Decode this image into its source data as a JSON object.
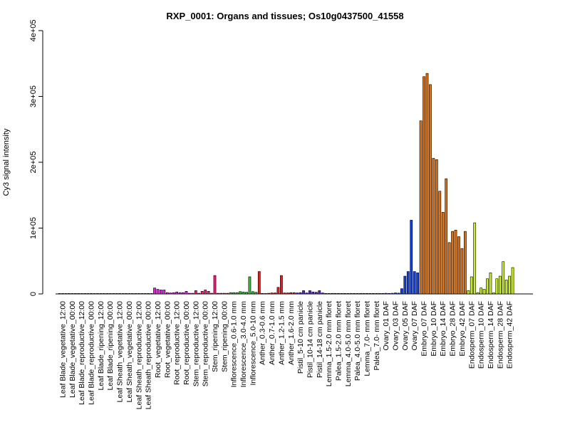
{
  "chart_data": {
    "type": "bar",
    "title": "RXP_0001: Organs and tissues; Os10g0437500_41558",
    "ylabel": "Cy3 signal intensity",
    "xlabel": "",
    "ylim": [
      0,
      400000
    ],
    "yticks": [
      0,
      100000,
      200000,
      300000,
      400000
    ],
    "ytick_labels": [
      "0",
      "1e+05",
      "2e+05",
      "3e+05",
      "4e+05"
    ],
    "grid": false,
    "legend": "none",
    "groups": [
      {
        "label": "Leaf Blade_vegetative_12:00",
        "color": "#3a3a3a",
        "values": [
          400,
          400,
          400
        ]
      },
      {
        "label": "Leaf Blade_vegetative_00:00",
        "color": "#3a3a3a",
        "values": [
          400,
          400,
          400
        ]
      },
      {
        "label": "Leaf Blade_reproductive_12:00",
        "color": "#3a3a3a",
        "values": [
          400,
          400,
          400
        ]
      },
      {
        "label": "Leaf Blade_reproductive_00:00",
        "color": "#3a3a3a",
        "values": [
          400,
          400,
          400
        ]
      },
      {
        "label": "Leaf Blade_ripening_12:00",
        "color": "#3a3a3a",
        "values": [
          400,
          400,
          400
        ]
      },
      {
        "label": "Leaf Blade_ripening_00:00",
        "color": "#3a3a3a",
        "values": [
          400,
          400,
          400
        ]
      },
      {
        "label": "Leaf Sheath_vegetative_12:00",
        "color": "#3a3a3a",
        "values": [
          400,
          400,
          400
        ]
      },
      {
        "label": "Leaf Sheath_vegetative_00:00",
        "color": "#3a3a3a",
        "values": [
          400,
          400,
          400
        ]
      },
      {
        "label": "Leaf Sheath_reproductive_12:00",
        "color": "#3a3a3a",
        "values": [
          400,
          400,
          400
        ]
      },
      {
        "label": "Leaf Sheath_reproductive_00:00",
        "color": "#3a3a3a",
        "values": [
          400,
          400,
          400
        ]
      },
      {
        "label": "Root_vegetative_12:00",
        "color": "#e020e0",
        "values": [
          9000,
          7000,
          6000
        ]
      },
      {
        "label": "Root_vegetative_00:00",
        "color": "#e020e0",
        "values": [
          6000,
          2000,
          1500
        ]
      },
      {
        "label": "Root_reproductive_12:00",
        "color": "#e020e0",
        "values": [
          2000,
          3000,
          2000
        ]
      },
      {
        "label": "Root_reproductive_00:00",
        "color": "#e020e0",
        "values": [
          2000,
          4000,
          1000
        ]
      },
      {
        "label": "Stem_reproductive_12:00",
        "color": "#e8207a",
        "values": [
          1000,
          5000,
          1000
        ]
      },
      {
        "label": "Stem_reproductive_00:00",
        "color": "#e8207a",
        "values": [
          4000,
          6000,
          4000
        ]
      },
      {
        "label": "Stem_ripening_12:00",
        "color": "#e8207a",
        "values": [
          1000,
          28000,
          1000
        ]
      },
      {
        "label": "Stem_ripening_00:00",
        "color": "#e8207a",
        "values": [
          1000,
          1000,
          1000
        ]
      },
      {
        "label": "Inflorescence_0.6-1.0 mm",
        "color": "#30c030",
        "values": [
          2000,
          2000,
          2000
        ]
      },
      {
        "label": "Inflorescence_3.0-4.0 mm",
        "color": "#30c030",
        "values": [
          3500,
          3000,
          2500
        ]
      },
      {
        "label": "Inflorescence_5.0-10 mm",
        "color": "#30c030",
        "values": [
          26000,
          3500,
          2500
        ]
      },
      {
        "label": "Anther_0.3-0.6 mm",
        "color": "#e02020",
        "values": [
          34000,
          800,
          600
        ]
      },
      {
        "label": "Anther_0.7-1.0 mm",
        "color": "#e02020",
        "values": [
          1000,
          1500,
          1500
        ]
      },
      {
        "label": "Anther_1.2-1.5 mm",
        "color": "#e02020",
        "values": [
          10000,
          28000,
          1500
        ]
      },
      {
        "label": "Anther_1.6-2.0 mm",
        "color": "#e02020",
        "values": [
          1500,
          2000,
          2000
        ]
      },
      {
        "label": "Pistil_5-10 cm panicle",
        "color": "#6020e0",
        "values": [
          1500,
          2000,
          5000
        ]
      },
      {
        "label": "Pistil_10-14 cm panicle",
        "color": "#6020e0",
        "values": [
          1500,
          5000,
          3000
        ]
      },
      {
        "label": "Pistil_14-18 cm panicle",
        "color": "#6020e0",
        "values": [
          2500,
          5000,
          1500
        ]
      },
      {
        "label": "Lemma_1.5-2.0 mm floret",
        "color": "#3a3a3a",
        "values": [
          800,
          800,
          800
        ]
      },
      {
        "label": "Palea_1.5-2.0 mm floret",
        "color": "#3a3a3a",
        "values": [
          800,
          800,
          800
        ]
      },
      {
        "label": "Lemma_4.0-5.0 mm floret",
        "color": "#3a3a3a",
        "values": [
          800,
          800,
          800
        ]
      },
      {
        "label": "Palea_4.0-5.0 mm floret",
        "color": "#3a3a3a",
        "values": [
          800,
          800,
          800
        ]
      },
      {
        "label": "Lemma_7.0- mm floret",
        "color": "#3a3a3a",
        "values": [
          800,
          800,
          800
        ]
      },
      {
        "label": "Palea_7.0- mm floret",
        "color": "#3a3a3a",
        "values": [
          800,
          800,
          800
        ]
      },
      {
        "label": "Ovary_01 DAF",
        "color": "#1040e0",
        "values": [
          800,
          1000,
          800
        ]
      },
      {
        "label": "Ovary_03 DAF",
        "color": "#1040e0",
        "values": [
          1000,
          1500,
          1200
        ]
      },
      {
        "label": "Ovary_05 DAF",
        "color": "#1040e0",
        "values": [
          8000,
          27000,
          34000
        ]
      },
      {
        "label": "Ovary_07 DAF",
        "color": "#1040e0",
        "values": [
          112000,
          34000,
          32000
        ]
      },
      {
        "label": "Embryo_07 DAF",
        "color": "#e07010",
        "values": [
          263000,
          330000,
          335000
        ]
      },
      {
        "label": "Embryo_10 DAF",
        "color": "#e07010",
        "values": [
          318000,
          206000,
          204000
        ]
      },
      {
        "label": "Embryo_14 DAF",
        "color": "#e07010",
        "values": [
          156000,
          124000,
          175000
        ]
      },
      {
        "label": "Embryo_28 DAF",
        "color": "#e07010",
        "values": [
          78000,
          95000,
          97000
        ]
      },
      {
        "label": "Embryo_42 DAF",
        "color": "#e07010",
        "values": [
          87000,
          69000,
          95000
        ]
      },
      {
        "label": "Endosperm_07 DAF",
        "color": "#c8f020",
        "values": [
          5000,
          26000,
          108000
        ]
      },
      {
        "label": "Endosperm_10 DAF",
        "color": "#c8f020",
        "values": [
          2000,
          9000,
          7000
        ]
      },
      {
        "label": "Endosperm_14 DAF",
        "color": "#c8f020",
        "values": [
          23000,
          32000,
          1500
        ]
      },
      {
        "label": "Endosperm_28 DAF",
        "color": "#c8f020",
        "values": [
          23000,
          27000,
          49000
        ]
      },
      {
        "label": "Endosperm_42 DAF",
        "color": "#c8f020",
        "values": [
          21000,
          27000,
          40000
        ]
      }
    ]
  }
}
